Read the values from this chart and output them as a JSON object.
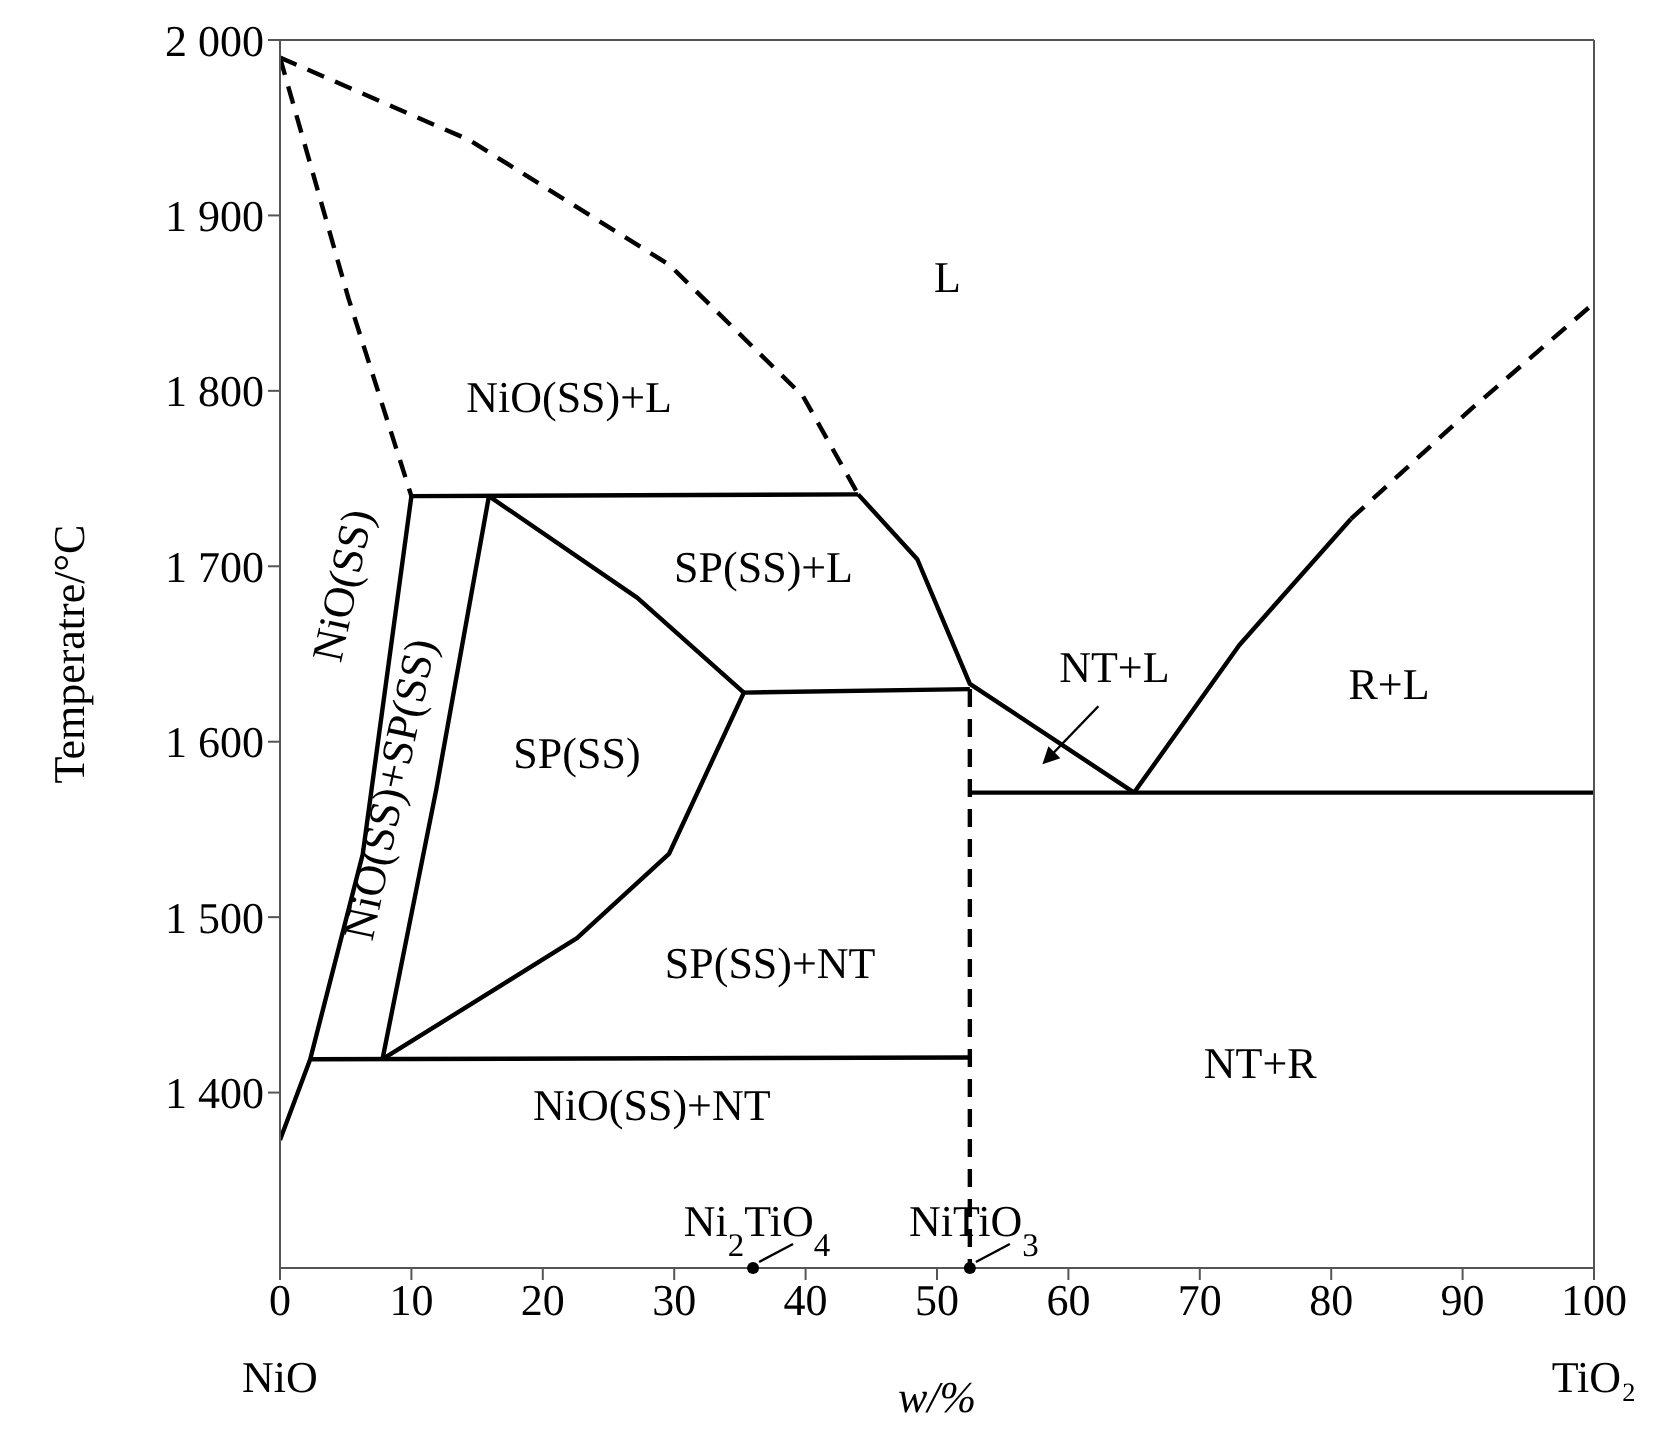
{
  "chart_data": {
    "type": "line",
    "xlabel": "w/%",
    "ylabel": "Temperatre/°C",
    "xlim": [
      0,
      100
    ],
    "xticks": [
      0,
      10,
      20,
      30,
      40,
      50,
      60,
      70,
      80,
      90,
      100
    ],
    "ylim": [
      1300,
      2000
    ],
    "yticks": [
      {
        "value": 1400,
        "label": "1 400"
      },
      {
        "value": 1500,
        "label": "1 500"
      },
      {
        "value": 1600,
        "label": "1 600"
      },
      {
        "value": 1700,
        "label": "1 700"
      },
      {
        "value": 1800,
        "label": "1 800"
      },
      {
        "value": 1900,
        "label": "1 900"
      },
      {
        "value": 2000,
        "label": "2 000"
      }
    ],
    "grid": false,
    "series": [
      {
        "color": "#000000",
        "line_style": "dashed",
        "x": [
          0,
          14.4,
          29.6,
          39.8,
          44
        ],
        "values": [
          1990,
          1943,
          1872,
          1797,
          1741
        ]
      },
      {
        "color": "#000000",
        "line_style": "solid",
        "x": [
          44,
          48.5,
          52.5,
          65
        ],
        "values": [
          1741,
          1704,
          1633,
          1571
        ]
      },
      {
        "color": "#000000",
        "line_style": "solid",
        "x": [
          65,
          73,
          81.5
        ],
        "values": [
          1571,
          1655,
          1727
        ]
      },
      {
        "color": "#000000",
        "line_style": "dashed",
        "x": [
          81.5,
          90.7,
          100
        ],
        "values": [
          1727,
          1790,
          1850
        ]
      },
      {
        "color": "#000000",
        "line_style": "dashed",
        "x": [
          0,
          5.2,
          10
        ],
        "values": [
          1990,
          1853,
          1740
        ]
      },
      {
        "color": "#000000",
        "line_style": "solid",
        "x": [
          10,
          44
        ],
        "values": [
          1740,
          1741
        ]
      },
      {
        "color": "#000000",
        "line_style": "solid",
        "x": [
          0,
          2.3,
          6.3,
          10
        ],
        "values": [
          1373,
          1419,
          1536,
          1740
        ]
      },
      {
        "color": "#000000",
        "line_style": "solid",
        "x": [
          7.8,
          11.9,
          15.9
        ],
        "values": [
          1419,
          1573,
          1740
        ]
      },
      {
        "color": "#000000",
        "line_style": "solid",
        "x": [
          15.9,
          27.2,
          35.3
        ],
        "values": [
          1740,
          1682,
          1628
        ]
      },
      {
        "color": "#000000",
        "line_style": "solid",
        "x": [
          7.8,
          22.6,
          29.6,
          35.3
        ],
        "values": [
          1419,
          1488,
          1536,
          1628
        ]
      },
      {
        "color": "#000000",
        "line_style": "solid",
        "x": [
          35.3,
          52.5
        ],
        "values": [
          1628,
          1630
        ]
      },
      {
        "color": "#000000",
        "line_style": "solid",
        "x": [
          2.3,
          52.5
        ],
        "values": [
          1419,
          1420
        ]
      },
      {
        "color": "#000000",
        "line_style": "dashed",
        "x": [
          52.5,
          52.5
        ],
        "values": [
          1630,
          1300
        ]
      },
      {
        "color": "#000000",
        "line_style": "solid",
        "x": [
          52.5,
          100
        ],
        "values": [
          1571,
          1571
        ]
      }
    ],
    "annotations": [
      "NiO",
      "TiO₂",
      "L",
      "NiO(SS)+L",
      "SP(SS)+L",
      "SP(SS)",
      "SP(SS)+NT",
      "NiO(SS)+NT",
      "NT+R",
      "R+L",
      "NT+L",
      "NiO(SS)",
      "NiO(SS)+SP(SS)",
      {
        "text": "Ni$_{2}$TiO$_{4}$",
        "x": 36,
        "y": 1300
      },
      {
        "text": "NiTiO$_{3}$",
        "x": 52.5,
        "y": 1300
      }
    ]
  }
}
